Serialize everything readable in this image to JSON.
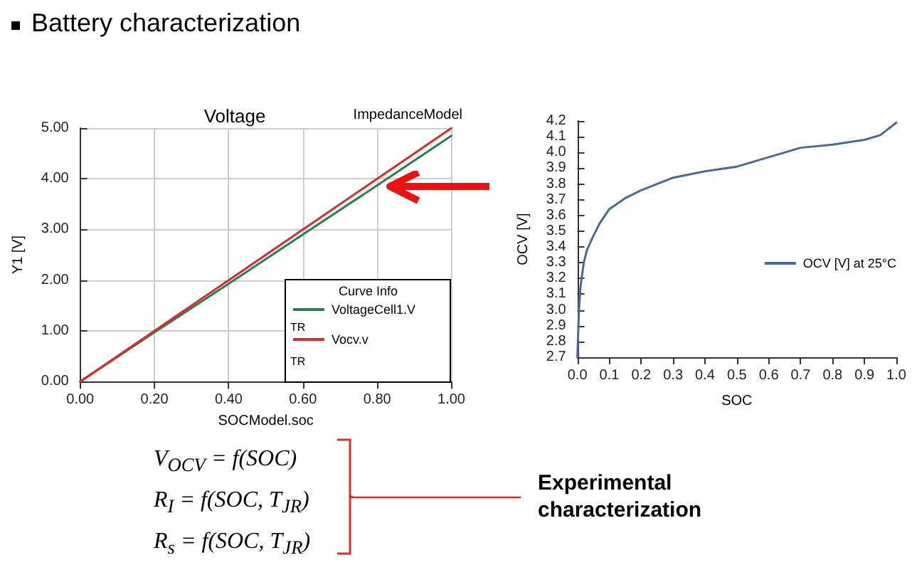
{
  "chart_data": [
    {
      "type": "line",
      "title": "Voltage",
      "subtitle": "ImpedanceModel",
      "xlabel": "SOCModel.soc",
      "ylabel": "Y1 [V]",
      "legend_title": "Curve Info",
      "annotations": [
        "TR",
        "TR"
      ],
      "x": [
        0,
        0.2,
        0.4,
        0.6,
        0.8,
        1.0
      ],
      "series": [
        {
          "name": "VoltageCell1.V",
          "color": "#2e7d4f",
          "values": [
            0,
            0.97,
            1.93,
            2.9,
            3.87,
            4.85
          ]
        },
        {
          "name": "Vocv.v",
          "color": "#d32f2f",
          "values": [
            0,
            1.0,
            2.0,
            3.0,
            4.0,
            5.0
          ]
        }
      ],
      "xlim": [
        0,
        1
      ],
      "ylim": [
        0,
        5
      ],
      "xticks": [
        {
          "value": 0,
          "label": "0.00"
        },
        {
          "value": 0.2,
          "label": "0.20"
        },
        {
          "value": 0.4,
          "label": "0.40"
        },
        {
          "value": 0.6,
          "label": "0.60"
        },
        {
          "value": 0.8,
          "label": "0.80"
        },
        {
          "value": 1,
          "label": "1.00"
        }
      ],
      "yticks": [
        {
          "value": 0,
          "label": "0.00"
        },
        {
          "value": 1,
          "label": "1.00"
        },
        {
          "value": 2,
          "label": "2.00"
        },
        {
          "value": 3,
          "label": "3.00"
        },
        {
          "value": 4,
          "label": "4.00"
        },
        {
          "value": 5,
          "label": "5.00"
        }
      ],
      "grid": true,
      "legend": "bottom right",
      "marker": "none",
      "line_style": "solid"
    },
    {
      "type": "line",
      "xlabel": "SOC",
      "ylabel": "OCV [V]",
      "x": [
        0,
        0.005,
        0.01,
        0.02,
        0.03,
        0.05,
        0.07,
        0.1,
        0.15,
        0.2,
        0.3,
        0.4,
        0.5,
        0.6,
        0.7,
        0.8,
        0.9,
        0.95,
        1.0
      ],
      "series": [
        {
          "name": "OCV [V] at 25°C",
          "color": "#4a6a94",
          "values": [
            2.7,
            3.0,
            3.15,
            3.3,
            3.38,
            3.47,
            3.55,
            3.64,
            3.71,
            3.76,
            3.84,
            3.88,
            3.91,
            3.97,
            4.03,
            4.05,
            4.08,
            4.11,
            4.19
          ]
        }
      ],
      "xlim": [
        0,
        1
      ],
      "ylim": [
        2.7,
        4.2
      ],
      "xticks": [
        {
          "value": 0,
          "label": "0.0"
        },
        0.1,
        0.2,
        0.3,
        0.4,
        0.5,
        0.6,
        0.7,
        0.8,
        0.9,
        {
          "value": 1,
          "label": "1.0"
        }
      ],
      "yticks": [
        2.7,
        2.8,
        2.9,
        {
          "value": 3,
          "label": "3.0"
        },
        3.1,
        3.2,
        3.3,
        3.4,
        3.5,
        3.6,
        3.7,
        3.8,
        3.9,
        {
          "value": 4,
          "label": "4.0"
        },
        4.1,
        4.2
      ],
      "grid": false,
      "legend": "right",
      "marker": "none",
      "line_style": "solid"
    },
    {
      "type": "other",
      "title": "Battery characterization",
      "annotations": [
        "V$_{OCV}$ = f(SOC)",
        "R$_{I}$ = f(SOC, T$_{JR}$)",
        "R$_{s}$ = f(SOC, T$_{JR}$)",
        "Experimental characterization"
      ]
    }
  ]
}
